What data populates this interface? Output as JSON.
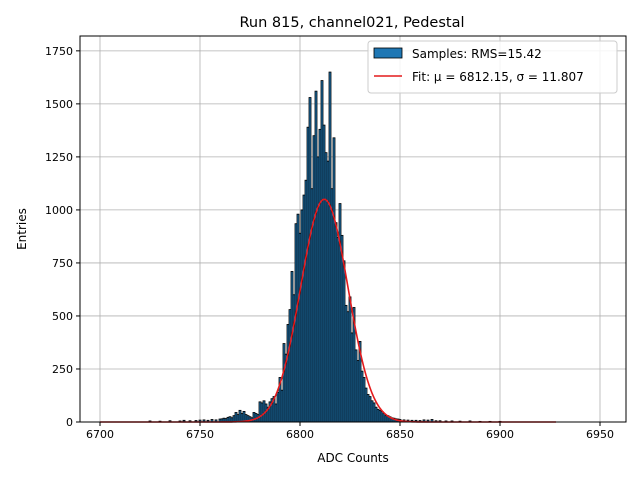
{
  "chart_data": {
    "type": "bar",
    "title": "Run 815, channel021, Pedestal",
    "xlabel": "ADC Counts",
    "ylabel": "Entries",
    "xlim": [
      6690,
      6963
    ],
    "ylim": [
      0,
      1820
    ],
    "xticks": [
      6700,
      6750,
      6800,
      6850,
      6900,
      6950
    ],
    "yticks": [
      0,
      250,
      500,
      750,
      1000,
      1250,
      1500,
      1750
    ],
    "grid": true,
    "legend_position": "top-right",
    "bin_width": 1,
    "series": [
      {
        "name": "Samples: RMS=15.42",
        "kind": "histogram",
        "color": "#1f77b4",
        "edgecolor": "#000000",
        "x": [
          6725,
          6730,
          6735,
          6740,
          6742,
          6745,
          6748,
          6750,
          6752,
          6754,
          6756,
          6758,
          6760,
          6761,
          6762,
          6763,
          6764,
          6765,
          6766,
          6767,
          6768,
          6769,
          6770,
          6771,
          6772,
          6773,
          6774,
          6775,
          6776,
          6777,
          6778,
          6779,
          6780,
          6781,
          6782,
          6783,
          6784,
          6785,
          6786,
          6787,
          6788,
          6789,
          6790,
          6791,
          6792,
          6793,
          6794,
          6795,
          6796,
          6797,
          6798,
          6799,
          6800,
          6801,
          6802,
          6803,
          6804,
          6805,
          6806,
          6807,
          6808,
          6809,
          6810,
          6811,
          6812,
          6813,
          6814,
          6815,
          6816,
          6817,
          6818,
          6819,
          6820,
          6821,
          6822,
          6823,
          6824,
          6825,
          6826,
          6827,
          6828,
          6829,
          6830,
          6831,
          6832,
          6833,
          6834,
          6835,
          6836,
          6837,
          6838,
          6839,
          6840,
          6841,
          6842,
          6843,
          6844,
          6845,
          6846,
          6847,
          6848,
          6849,
          6850,
          6852,
          6854,
          6856,
          6858,
          6860,
          6862,
          6864,
          6866,
          6868,
          6870,
          6873,
          6876,
          6880,
          6885,
          6890,
          6895,
          6900
        ],
        "values": [
          5,
          4,
          6,
          5,
          8,
          6,
          7,
          9,
          10,
          8,
          12,
          10,
          14,
          15,
          18,
          16,
          22,
          25,
          20,
          30,
          45,
          35,
          55,
          40,
          50,
          35,
          30,
          25,
          20,
          45,
          40,
          35,
          95,
          90,
          100,
          85,
          70,
          95,
          110,
          120,
          85,
          140,
          210,
          150,
          370,
          320,
          460,
          530,
          710,
          600,
          935,
          980,
          890,
          1000,
          1070,
          1140,
          1390,
          1530,
          1100,
          1350,
          1560,
          1250,
          1380,
          1610,
          1400,
          1270,
          1230,
          1650,
          1100,
          1340,
          940,
          870,
          1030,
          880,
          760,
          550,
          520,
          590,
          420,
          540,
          340,
          290,
          380,
          240,
          210,
          160,
          130,
          120,
          100,
          90,
          70,
          60,
          55,
          50,
          40,
          30,
          30,
          25,
          20,
          18,
          15,
          14,
          12,
          10,
          9,
          8,
          8,
          7,
          10,
          9,
          12,
          6,
          6,
          5,
          5,
          4,
          5,
          3,
          3,
          3
        ]
      },
      {
        "name": "Fit: μ = 6812.15, σ = 11.807",
        "kind": "line",
        "color": "#e41a1c",
        "x_range": [
          6700,
          6928
        ],
        "mu": 6812.15,
        "sigma": 11.807,
        "amplitude": 1050
      }
    ]
  }
}
